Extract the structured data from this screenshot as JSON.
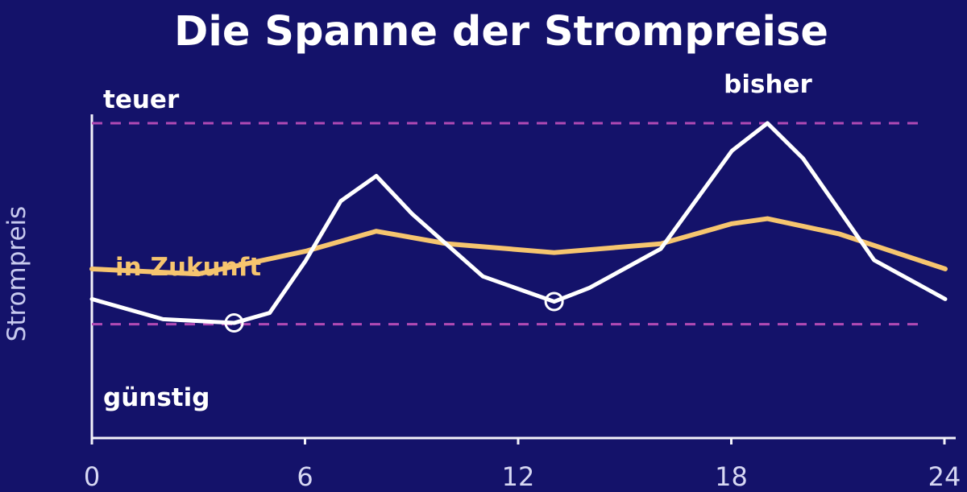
{
  "colors": {
    "background": "#14126a",
    "axis": "#f3f2fa",
    "title": "#ffffff",
    "ylabel": "#c7c9ee",
    "tick": "#d7d8f3",
    "past_series": "#ffffff",
    "future_series": "#f6c56f",
    "reference_lines": "#b04ab4"
  },
  "chart_data": {
    "type": "line",
    "title": "Die Spanne der Strompreise",
    "xlabel": "",
    "ylabel": "Strompreis",
    "xlim": [
      0,
      24
    ],
    "ylim": [
      0,
      100
    ],
    "x_ticks": [
      0,
      6,
      12,
      18,
      24
    ],
    "x_tick_labels": [
      "0",
      "6",
      "12",
      "18",
      "24"
    ],
    "grid": false,
    "series": [
      {
        "name": "bisher",
        "color": "#ffffff",
        "x": [
          0,
          2,
          4,
          5,
          6,
          7,
          8,
          9,
          11,
          13,
          14,
          16,
          18,
          19,
          20,
          22,
          24
        ],
        "y": [
          30,
          22,
          20.5,
          24.5,
          45,
          69,
          79,
          64,
          39,
          29,
          34.5,
          50,
          89,
          100,
          86,
          45.5,
          30
        ]
      },
      {
        "name": "in Zukunft",
        "color": "#f6c56f",
        "x": [
          0,
          3,
          6,
          8,
          10,
          13,
          16,
          18,
          19,
          21,
          24
        ],
        "y": [
          42,
          40,
          49,
          57,
          52,
          48.5,
          52,
          60,
          62,
          56,
          42
        ]
      }
    ],
    "reference_lines": [
      {
        "label": "teuer",
        "y": 100
      },
      {
        "label": "günstig",
        "y": 20
      }
    ],
    "markers": [
      {
        "x": 4,
        "y": 20.5
      },
      {
        "x": 13,
        "y": 29
      }
    ]
  }
}
